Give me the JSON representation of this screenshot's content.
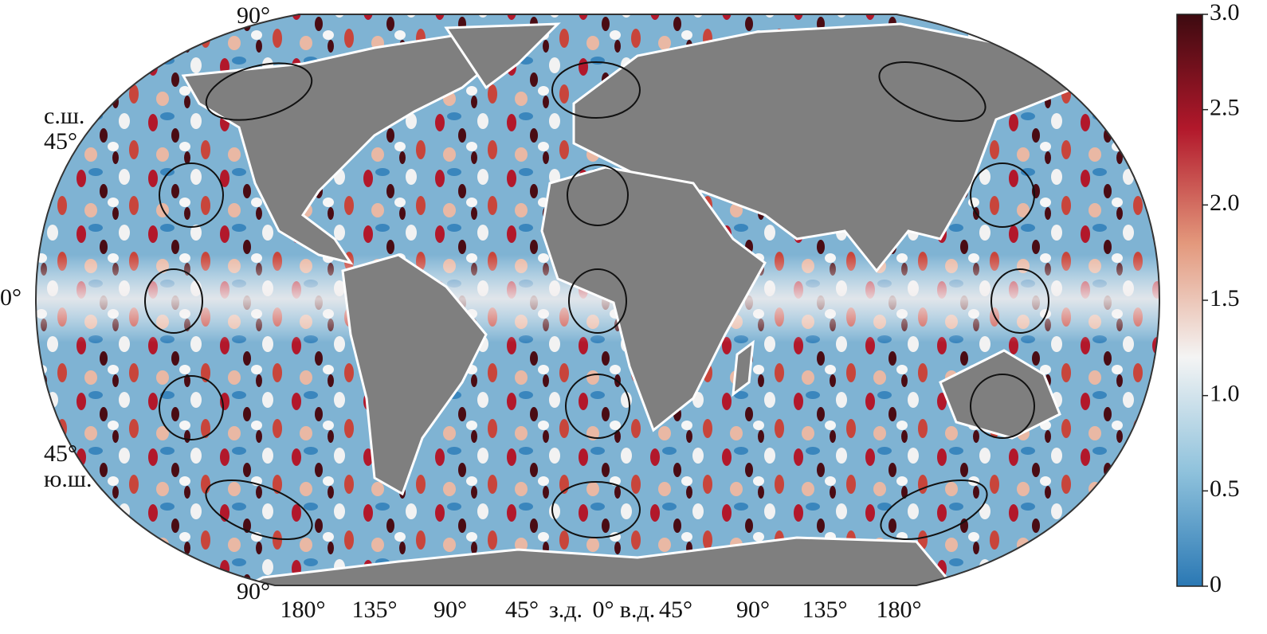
{
  "map": {
    "lat_labels": [
      "90°",
      "с.ш.",
      "45°",
      "0°",
      "45°",
      "ю.ш.",
      "90°"
    ],
    "lon_labels": [
      "180°",
      "135°",
      "90°",
      "45°",
      "з.д.",
      "0°",
      "в.д.",
      "45°",
      "90°",
      "135°",
      "180°"
    ],
    "colorbar": {
      "lim": [
        0,
        3
      ],
      "ticks": [
        0,
        0.5,
        {
          "value": 1,
          "label": "1.0"
        },
        1.5,
        {
          "value": 2,
          "label": "2.0"
        },
        2.5,
        {
          "value": 3,
          "label": "3.0"
        }
      ],
      "colors": [
        "#2a78b4",
        "#8fc2dc",
        "#f4f4f4",
        "#e3987c",
        "#b2182b",
        "#3d0a10"
      ]
    }
  }
}
